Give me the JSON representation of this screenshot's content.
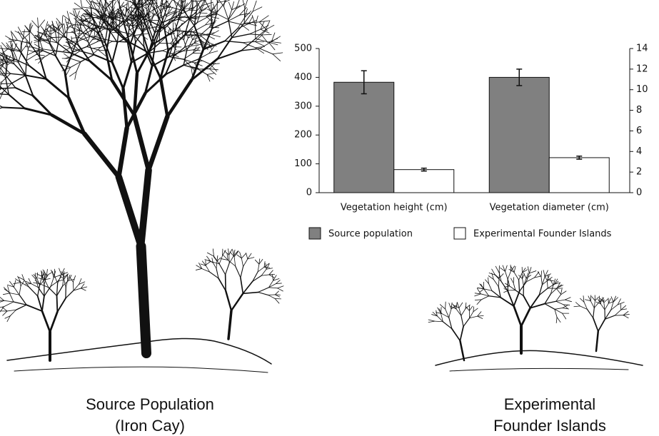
{
  "chart_data": {
    "type": "bar",
    "categories": [
      "Vegetation height (cm)",
      "Vegetation diameter (cm)"
    ],
    "category_axis": [
      "y",
      "y2"
    ],
    "series": [
      {
        "name": "Source population",
        "color": "#808080",
        "values": [
          383,
          11.2
        ],
        "errors": [
          40,
          0.8
        ]
      },
      {
        "name": "Experimental Founder Islands",
        "color": "#ffffff",
        "values": [
          80,
          3.4
        ],
        "errors": [
          5,
          0.15
        ]
      }
    ],
    "ylim": [
      0,
      500
    ],
    "yticks": [
      0,
      100,
      200,
      300,
      400,
      500
    ],
    "y2lim": [
      0,
      14
    ],
    "y2ticks": [
      0,
      2,
      4,
      6,
      8,
      10,
      12,
      14
    ],
    "legend": "bottom"
  },
  "captions": [
    {
      "lines": [
        "Source Population",
        "(Iron Cay)"
      ]
    },
    {
      "lines": [
        "Experimental",
        "Founder Islands"
      ]
    }
  ]
}
